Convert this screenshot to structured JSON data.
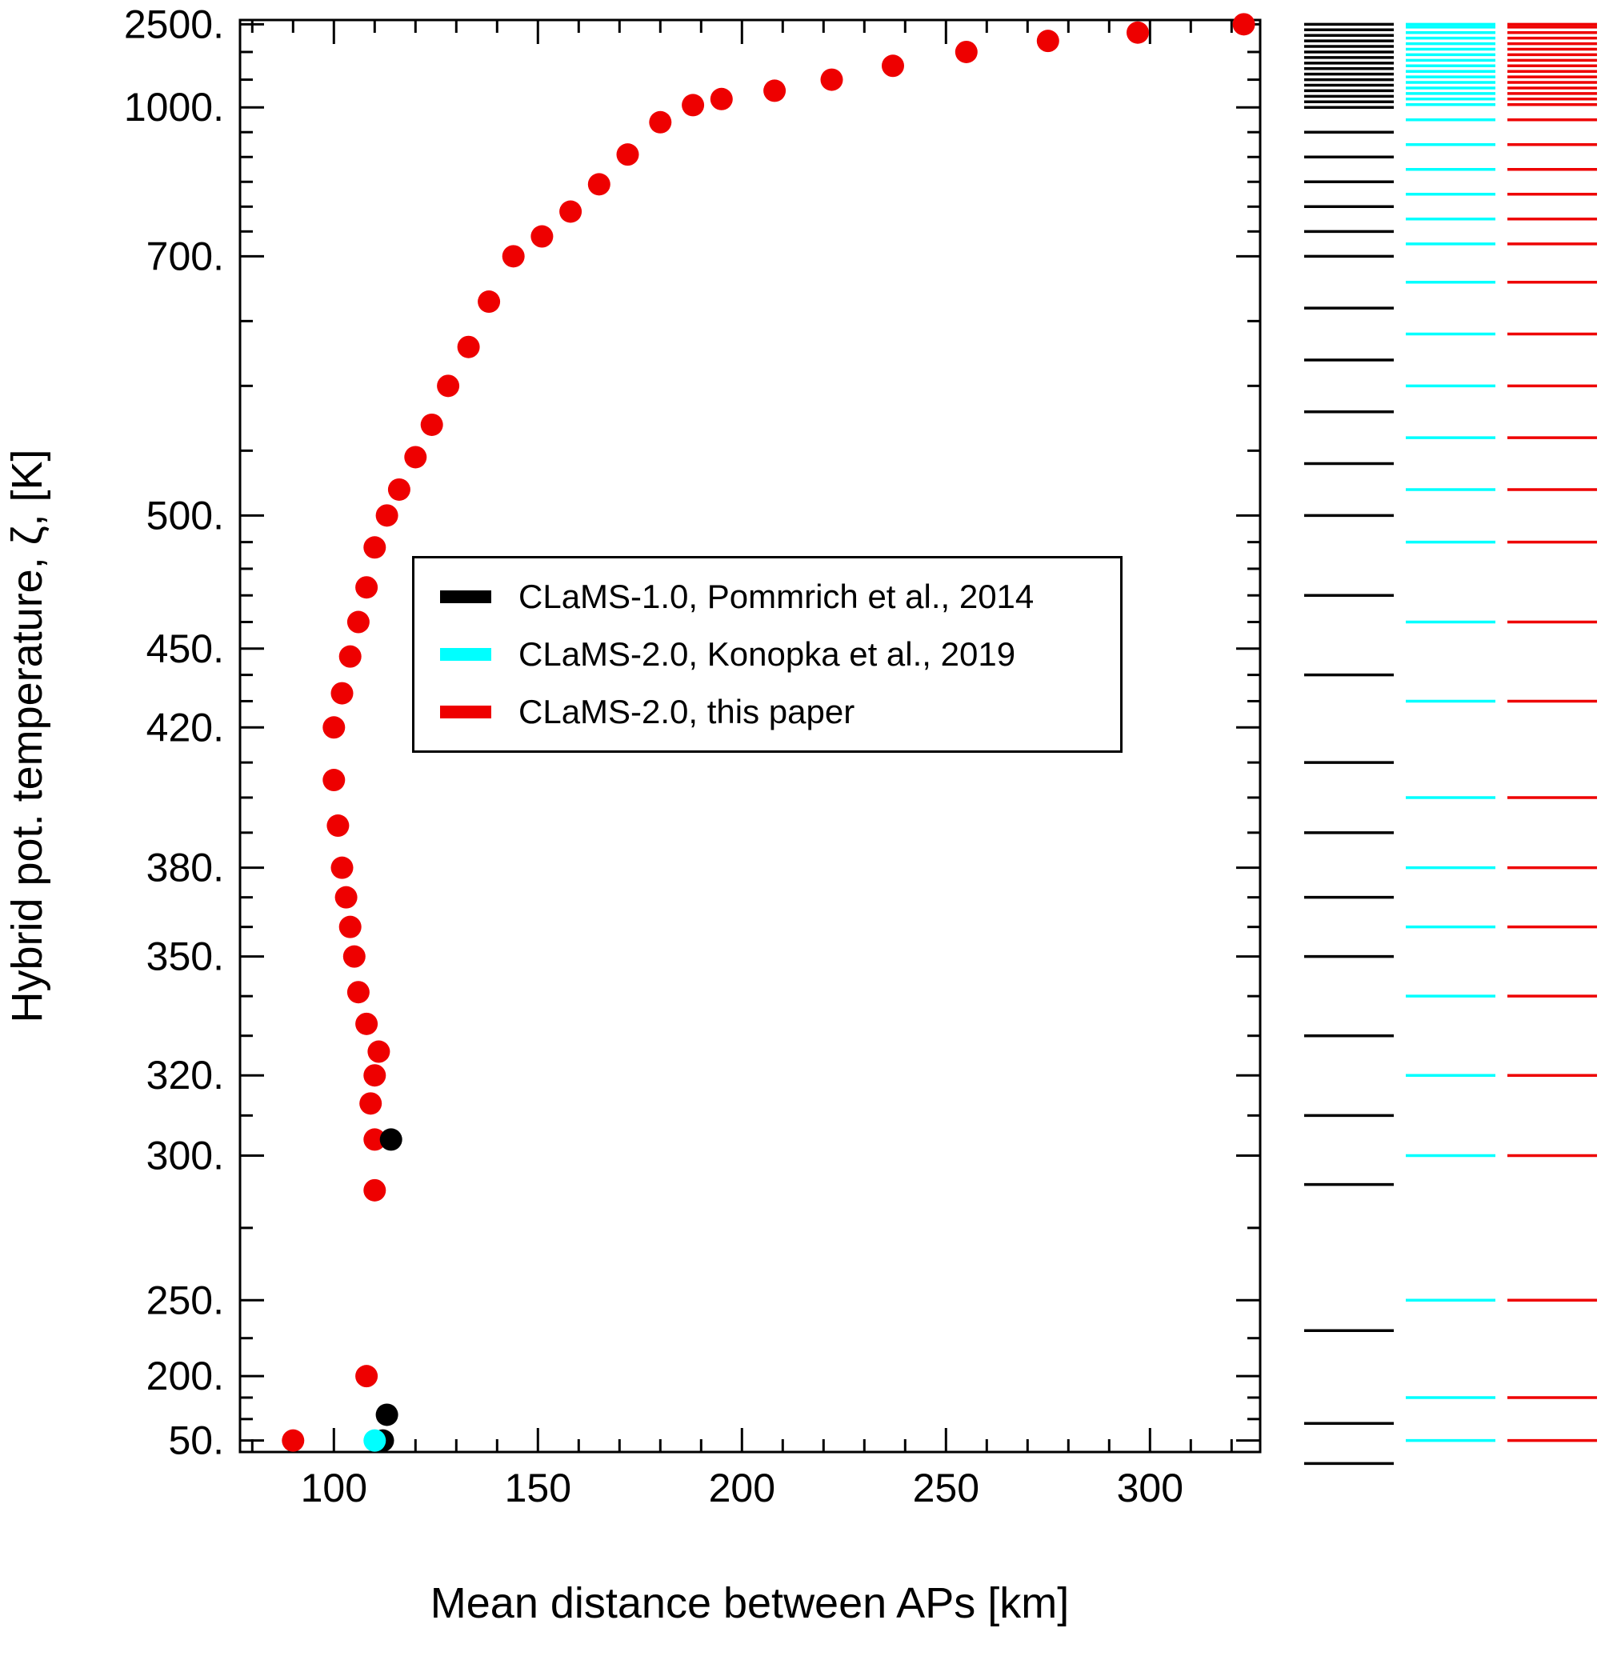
{
  "chart_data": {
    "type": "scatter",
    "title": "",
    "xlabel": "Mean distance between APs [km]",
    "ylabel": "Hybrid pot. temperature, ζ, [K]",
    "xlim": [
      77,
      327
    ],
    "grid": false,
    "legend_position": "upper-middle-inside",
    "x_major_ticks": [
      100,
      150,
      200,
      250,
      300
    ],
    "x_minor_step": 10,
    "y_tick_labels": [
      "2500.",
      "1000.",
      "700.",
      "500.",
      "450.",
      "420.",
      "380.",
      "350.",
      "320.",
      "300.",
      "250.",
      "200.",
      "50."
    ],
    "y_tick_values": [
      2500,
      1000,
      700,
      500,
      450,
      420,
      380,
      350,
      320,
      300,
      250,
      200,
      50
    ],
    "y_minor_values": [
      100,
      150,
      225,
      275,
      310,
      330,
      340,
      360,
      370,
      390,
      400,
      410,
      430,
      440,
      460,
      470,
      480,
      490,
      550,
      600,
      650,
      750,
      800,
      850,
      900,
      950,
      1500,
      2000
    ],
    "y_axis_anchors": [
      [
        40,
        1.008
      ],
      [
        50,
        0.992
      ],
      [
        200,
        0.947
      ],
      [
        250,
        0.894
      ],
      [
        300,
        0.793
      ],
      [
        320,
        0.737
      ],
      [
        350,
        0.654
      ],
      [
        380,
        0.592
      ],
      [
        420,
        0.494
      ],
      [
        450,
        0.439
      ],
      [
        500,
        0.346
      ],
      [
        700,
        0.165
      ],
      [
        1000,
        0.061
      ],
      [
        2500,
        0.003
      ]
    ],
    "series": [
      {
        "name": "CLaMS-1.0, Pommrich et al., 2014",
        "color": "#000000",
        "points": [
          [
            112,
            50
          ],
          [
            113,
            110
          ],
          [
            114,
            304
          ]
        ]
      },
      {
        "name": "CLaMS-2.0, Konopka et al., 2019",
        "color": "#00ffff",
        "points": [
          [
            110,
            50
          ]
        ]
      },
      {
        "name": "CLaMS-2.0, this paper",
        "color": "#ee0000",
        "points": [
          [
            90,
            50
          ],
          [
            108,
            200
          ],
          [
            110,
            288
          ],
          [
            110,
            304
          ],
          [
            109,
            313
          ],
          [
            110,
            320
          ],
          [
            111,
            326
          ],
          [
            108,
            333
          ],
          [
            106,
            341
          ],
          [
            105,
            350
          ],
          [
            104,
            360
          ],
          [
            103,
            370
          ],
          [
            102,
            380
          ],
          [
            101,
            392
          ],
          [
            100,
            405
          ],
          [
            100,
            420
          ],
          [
            102,
            433
          ],
          [
            104,
            447
          ],
          [
            106,
            460
          ],
          [
            108,
            473
          ],
          [
            110,
            488
          ],
          [
            113,
            500
          ],
          [
            116,
            520
          ],
          [
            120,
            545
          ],
          [
            124,
            570
          ],
          [
            128,
            600
          ],
          [
            133,
            630
          ],
          [
            138,
            665
          ],
          [
            144,
            700
          ],
          [
            151,
            740
          ],
          [
            158,
            790
          ],
          [
            165,
            845
          ],
          [
            172,
            905
          ],
          [
            180,
            970
          ],
          [
            188,
            1040
          ],
          [
            195,
            1150
          ],
          [
            208,
            1300
          ],
          [
            222,
            1500
          ],
          [
            237,
            1750
          ],
          [
            255,
            2000
          ],
          [
            275,
            2200
          ],
          [
            297,
            2350
          ],
          [
            323,
            2500
          ]
        ]
      }
    ],
    "legend": [
      {
        "label": "CLaMS-1.0, Pommrich et al., 2014",
        "color": "#000000"
      },
      {
        "label": "CLaMS-2.0, Konopka et al., 2019",
        "color": "#00ffff"
      },
      {
        "label": "CLaMS-2.0, this paper",
        "color": "#ee0000"
      }
    ],
    "level_columns": [
      {
        "name": "clams-1-levels",
        "color": "#000000",
        "levels": [
          40,
          90,
          230,
          290,
          310,
          330,
          350,
          370,
          390,
          410,
          440,
          470,
          500,
          540,
          580,
          620,
          660,
          700,
          750,
          800,
          850,
          900,
          950,
          1000,
          1100,
          1200,
          1300,
          1400,
          1500,
          1600,
          1700,
          1800,
          1900,
          2000,
          2100,
          2200,
          2300,
          2400,
          2500
        ]
      },
      {
        "name": "clams-2-konopka-levels",
        "color": "#00ffff",
        "levels": [
          50,
          150,
          250,
          300,
          320,
          340,
          360,
          380,
          400,
          430,
          460,
          490,
          520,
          560,
          600,
          640,
          680,
          725,
          775,
          825,
          875,
          925,
          975,
          1050,
          1150,
          1250,
          1350,
          1450,
          1550,
          1650,
          1750,
          1850,
          1950,
          2050,
          2150,
          2250,
          2350,
          2450,
          2500
        ]
      },
      {
        "name": "clams-2-this-paper-levels",
        "color": "#ee0000",
        "levels": [
          50,
          150,
          250,
          300,
          320,
          340,
          360,
          380,
          400,
          430,
          460,
          490,
          520,
          560,
          600,
          640,
          680,
          725,
          775,
          825,
          875,
          925,
          975,
          1050,
          1150,
          1250,
          1350,
          1450,
          1550,
          1650,
          1750,
          1850,
          1950,
          2050,
          2150,
          2250,
          2350,
          2450,
          2500
        ]
      }
    ]
  }
}
